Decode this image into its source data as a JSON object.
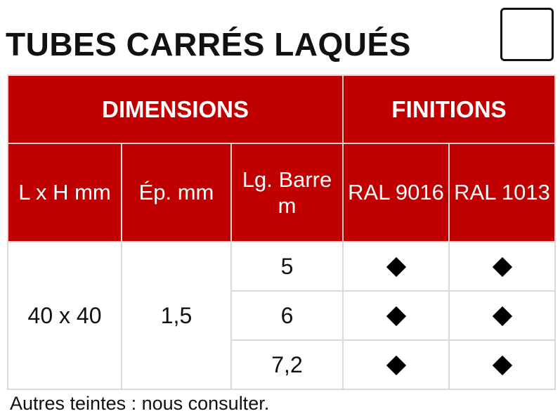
{
  "title": "TUBES CARRÉS LAQUÉS",
  "header": {
    "group1": "DIMENSIONS",
    "group2": "FINITIONS",
    "col_lxh": "L x H mm",
    "col_ep": "Ép. mm",
    "col_lg": "Lg. Barre m",
    "col_ral1": "RAL 9016",
    "col_ral2": "RAL 1013"
  },
  "body": {
    "lxh": "40 x 40",
    "ep": "1,5",
    "rows": [
      {
        "lg": "5",
        "ral9016": "available",
        "ral1013": "available"
      },
      {
        "lg": "6",
        "ral9016": "available",
        "ral1013": "available"
      },
      {
        "lg": "7,2",
        "ral9016": "available",
        "ral1013": "available"
      }
    ]
  },
  "footnote": "Autres teintes : nous consulter.",
  "colors": {
    "header_bg": "#c00000",
    "header_text": "#ffffff",
    "grid": "#d9d9d9"
  },
  "icons": {
    "availability": "diamond-icon"
  }
}
